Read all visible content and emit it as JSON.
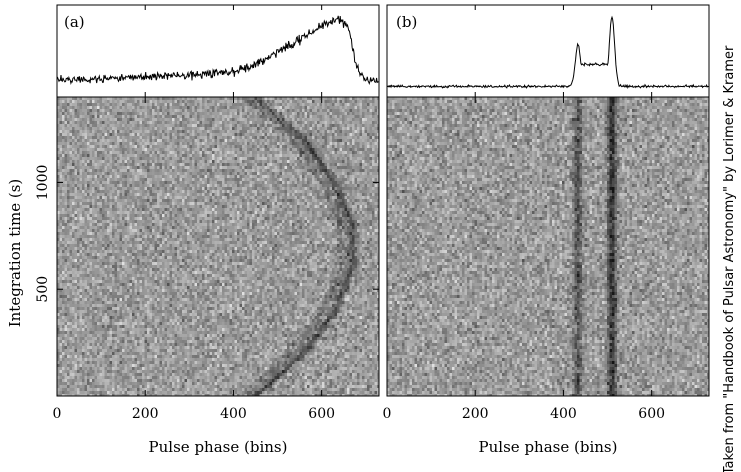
{
  "chart_data": [
    {
      "type": "heatmap",
      "panel_label": "(a)",
      "xlabel": "Pulse phase (bins)",
      "ylabel": "Integration time (s)",
      "xlim": [
        0,
        730
      ],
      "ylim": [
        0,
        1400
      ],
      "x_ticks": [
        "0",
        "200",
        "400",
        "600"
      ],
      "y_ticks": [
        "500",
        "1000"
      ],
      "profile": {
        "description_points_x": [
          0,
          100,
          200,
          300,
          400,
          450,
          500,
          550,
          600,
          620,
          640,
          660,
          680,
          700,
          730
        ],
        "relative_intensity": [
          0.15,
          0.17,
          0.2,
          0.22,
          0.25,
          0.35,
          0.5,
          0.65,
          0.82,
          0.88,
          0.9,
          0.8,
          0.3,
          0.15,
          0.15
        ]
      },
      "pulse_track": {
        "time_s": [
          0,
          200,
          400,
          600,
          800,
          1000,
          1200,
          1400
        ],
        "phase_bins": [
          450,
          560,
          630,
          670,
          670,
          630,
          560,
          450
        ]
      }
    },
    {
      "type": "heatmap",
      "panel_label": "(b)",
      "xlabel": "Pulse phase (bins)",
      "ylabel": "",
      "xlim": [
        0,
        730
      ],
      "ylim": [
        0,
        1400
      ],
      "x_ticks": [
        "0",
        "200",
        "400",
        "600"
      ],
      "y_ticks": [],
      "profile": {
        "components": [
          {
            "center_bin": 433,
            "relative_height": 0.6
          },
          {
            "center_bin": 510,
            "relative_height": 1.0
          }
        ],
        "bridge_level": 0.35
      },
      "pulse_track": {
        "phase_bins_constant": [
          433,
          510
        ]
      }
    }
  ],
  "credit": "Taken from \"Handbook of Pulsar Astronomy\" by Lorimer & Kramer"
}
